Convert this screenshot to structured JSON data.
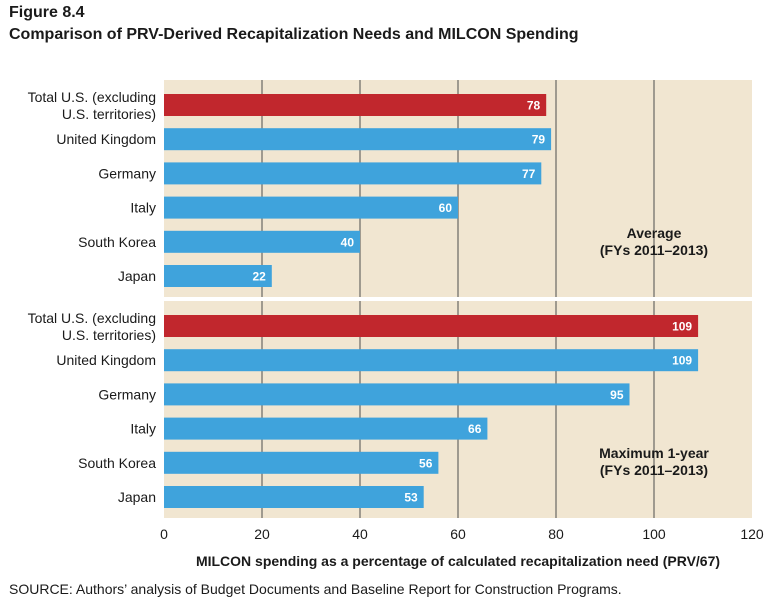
{
  "figure_label": "Figure 8.4",
  "title": "Comparison of PRV-Derived Recapitalization Needs and MILCON Spending",
  "source": "SOURCE: Authors’ analysis of Budget Documents and Baseline Report for Construction Programs.",
  "colors": {
    "panel_bg": "#f1e6d1",
    "bar_highlight": "#c1272d",
    "bar": "#3fa3dc",
    "grid": "#4d4d4d"
  },
  "chart_data": {
    "type": "bar",
    "orientation": "horizontal",
    "xlabel": "MILCON spending as a percentage of calculated recapitalization need (PRV/67)",
    "xlim": [
      0,
      120
    ],
    "xticks": [
      0,
      20,
      40,
      60,
      80,
      100,
      120
    ],
    "gridlines": [
      20,
      40,
      60,
      80,
      100
    ],
    "panels": [
      {
        "annotation": [
          "Average",
          "(FYs 2011–2013)"
        ],
        "categories": [
          [
            "Total U.S. (excluding",
            "U.S. territories)"
          ],
          [
            "United Kingdom"
          ],
          [
            "Germany"
          ],
          [
            "Italy"
          ],
          [
            "South Korea"
          ],
          [
            "Japan"
          ]
        ],
        "values": [
          78,
          79,
          77,
          60,
          40,
          22
        ],
        "highlight": [
          true,
          false,
          false,
          false,
          false,
          false
        ]
      },
      {
        "annotation": [
          "Maximum 1-year",
          "(FYs 2011–2013)"
        ],
        "categories": [
          [
            "Total U.S. (excluding",
            "U.S. territories)"
          ],
          [
            "United Kingdom"
          ],
          [
            "Germany"
          ],
          [
            "Italy"
          ],
          [
            "South Korea"
          ],
          [
            "Japan"
          ]
        ],
        "values": [
          109,
          109,
          95,
          66,
          56,
          53
        ],
        "highlight": [
          true,
          false,
          false,
          false,
          false,
          false
        ]
      }
    ]
  }
}
